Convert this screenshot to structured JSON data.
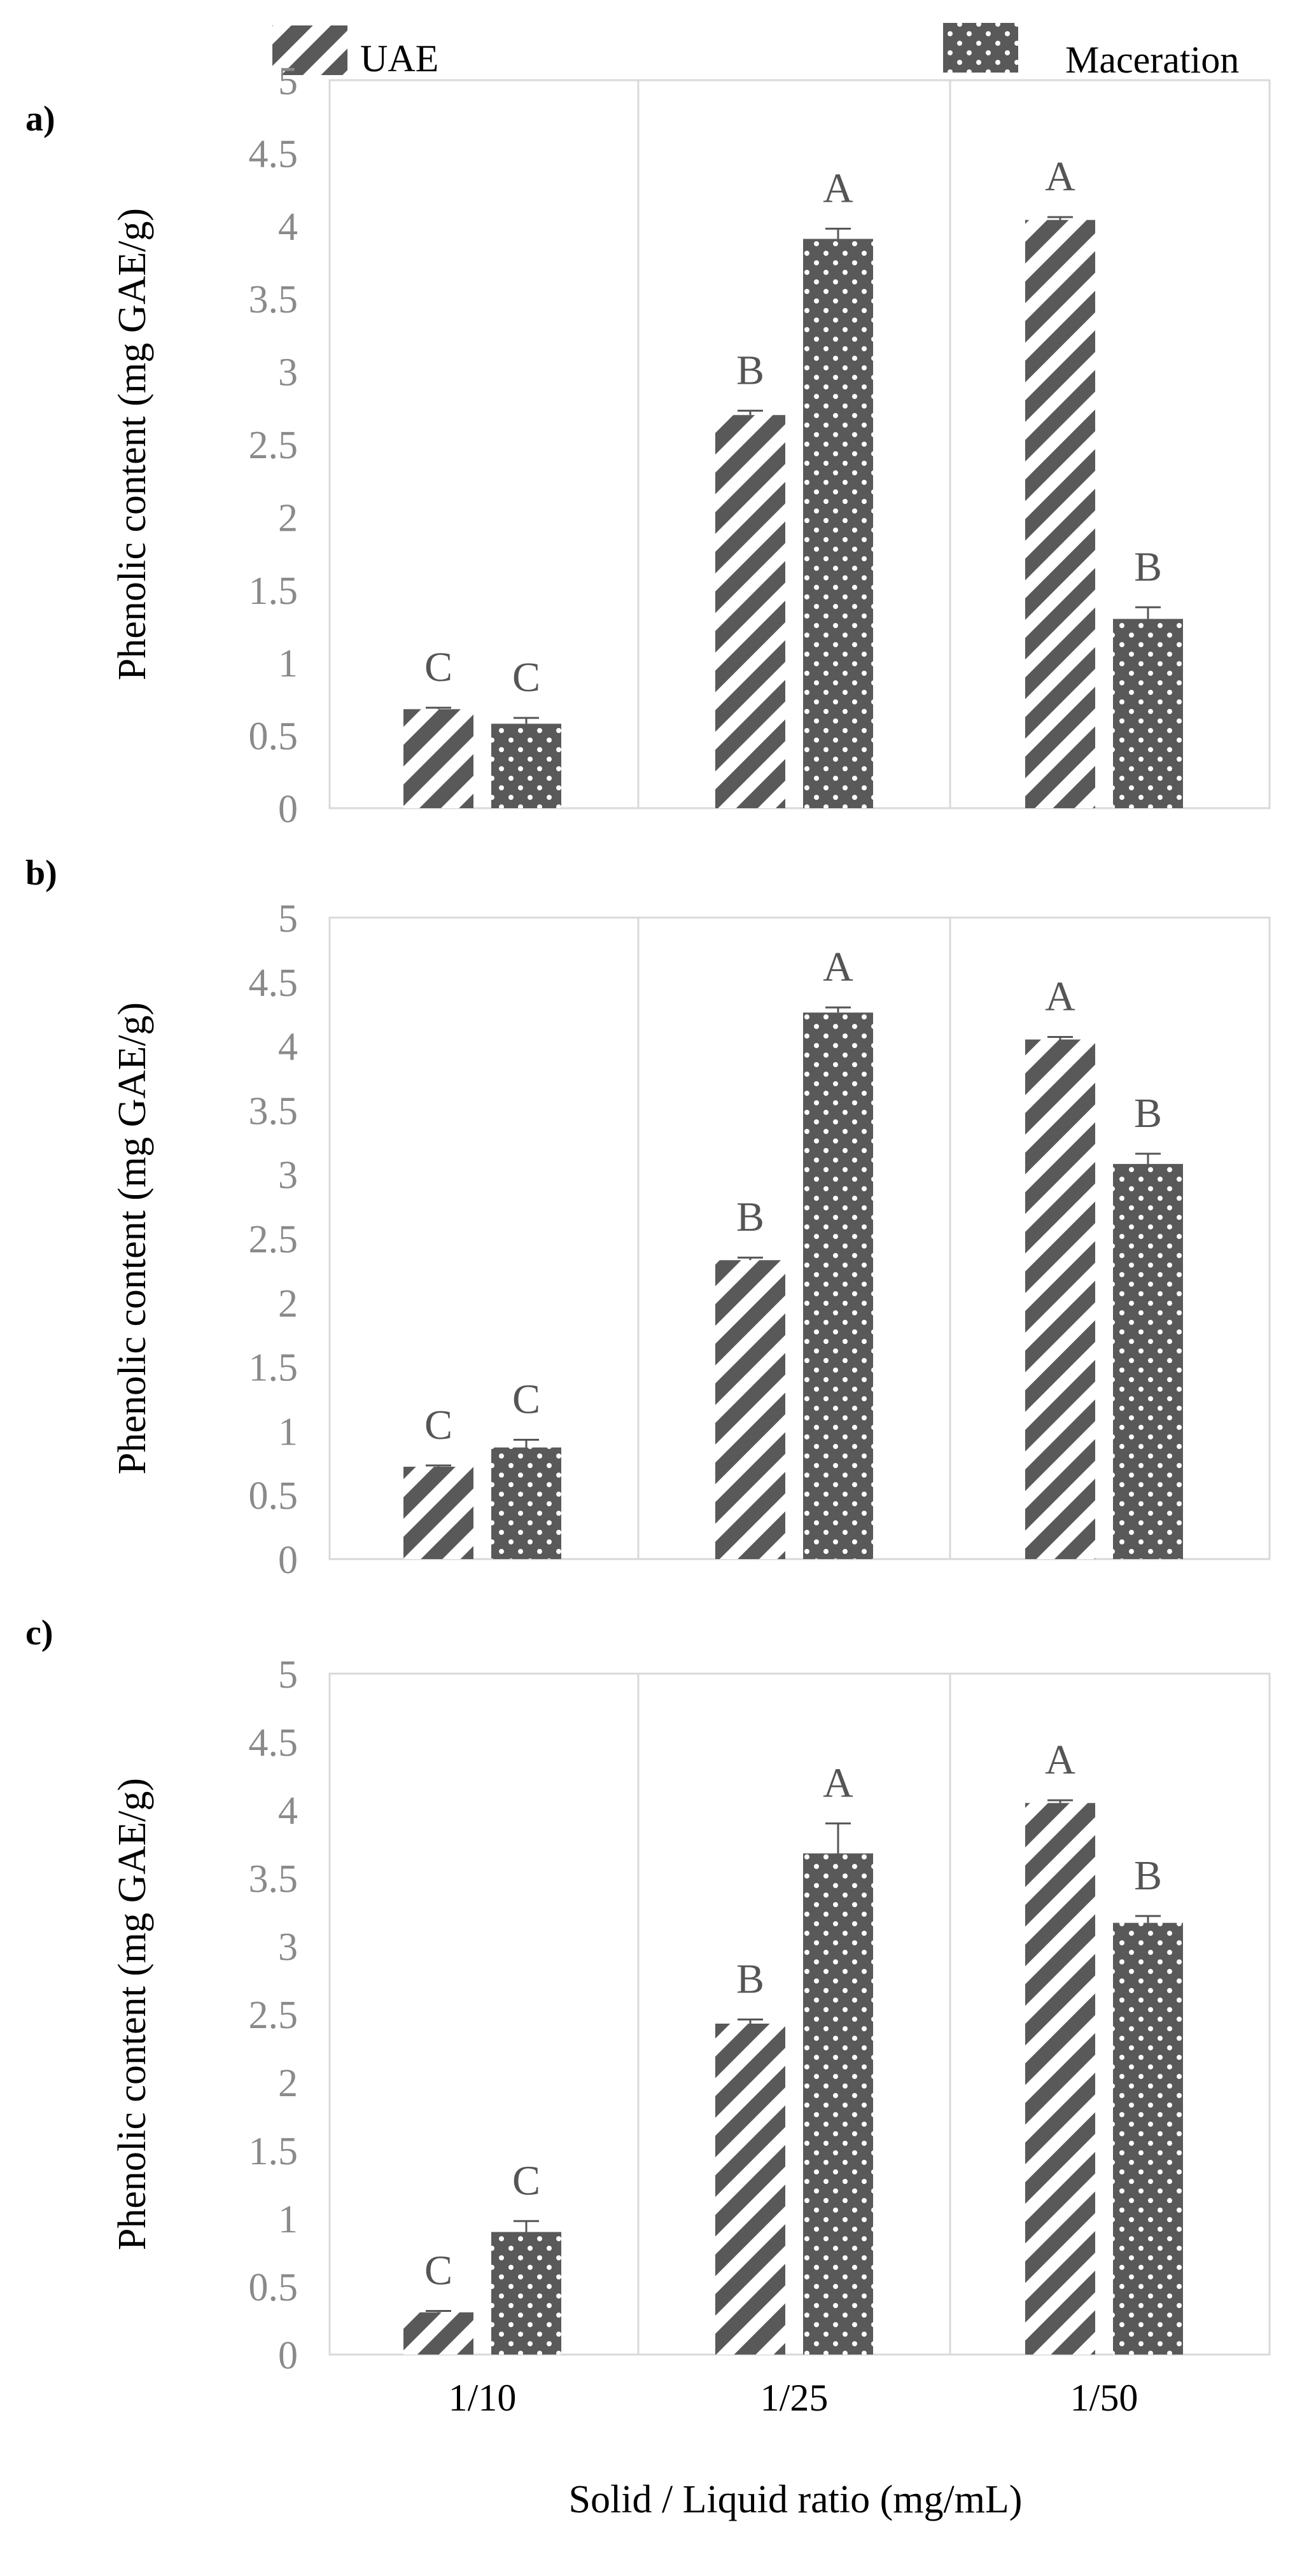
{
  "legend": [
    {
      "name": "UAE",
      "pattern": "diagonal-stripes"
    },
    {
      "name": "Maceration",
      "pattern": "dots"
    }
  ],
  "colors": {
    "bar": "#595959",
    "grid": "#d9d9d9",
    "tick_text": "#8a8a8a",
    "letter_text": "#555555"
  },
  "xlabel": "Solid / Liquid ratio (mg/mL)",
  "chart_data": [
    {
      "type": "bar",
      "panel": "a)",
      "categories": [
        "1/10",
        "1/25",
        "1/50"
      ],
      "ylabel": "Phenolic content (mg GAE/g)",
      "ylim": [
        0,
        5
      ],
      "yticks": [
        "0",
        "0.5",
        "1",
        "1.5",
        "2",
        "2.5",
        "3",
        "3.5",
        "4",
        "4.5",
        "5"
      ],
      "grid": "vertical category separators",
      "series": [
        {
          "name": "UAE",
          "values": [
            0.68,
            2.7,
            4.04
          ],
          "errors": [
            0.01,
            0.03,
            0.02
          ],
          "letters": [
            "C",
            "B",
            "A"
          ]
        },
        {
          "name": "Maceration",
          "values": [
            0.58,
            3.91,
            1.3
          ],
          "errors": [
            0.04,
            0.07,
            0.08
          ],
          "letters": [
            "C",
            "A",
            "B"
          ]
        }
      ]
    },
    {
      "type": "bar",
      "panel": "b)",
      "categories": [
        "1/10",
        "1/25",
        "1/50"
      ],
      "ylabel": "Phenolic content (mg GAE/g)",
      "ylim": [
        0,
        5
      ],
      "yticks": [
        "0",
        "0.5",
        "1",
        "1.5",
        "2",
        "2.5",
        "3",
        "3.5",
        "4",
        "4.5",
        "5"
      ],
      "grid": "vertical category separators",
      "series": [
        {
          "name": "UAE",
          "values": [
            0.72,
            2.33,
            4.05
          ],
          "errors": [
            0.01,
            0.02,
            0.02
          ],
          "letters": [
            "C",
            "B",
            "A"
          ]
        },
        {
          "name": "Maceration",
          "values": [
            0.87,
            4.26,
            3.08
          ],
          "errors": [
            0.06,
            0.04,
            0.08
          ],
          "letters": [
            "C",
            "A",
            "B"
          ]
        }
      ]
    },
    {
      "type": "bar",
      "panel": "c)",
      "categories": [
        "1/10",
        "1/25",
        "1/50"
      ],
      "ylabel": "Phenolic content (mg GAE/g)",
      "ylim": [
        0,
        5
      ],
      "yticks": [
        "0",
        "0.5",
        "1",
        "1.5",
        "2",
        "2.5",
        "3",
        "3.5",
        "4",
        "4.5",
        "5"
      ],
      "grid": "vertical category separators",
      "series": [
        {
          "name": "UAE",
          "values": [
            0.31,
            2.43,
            4.05
          ],
          "errors": [
            0.01,
            0.03,
            0.02
          ],
          "letters": [
            "C",
            "B",
            "A"
          ]
        },
        {
          "name": "Maceration",
          "values": [
            0.9,
            3.68,
            3.17
          ],
          "errors": [
            0.08,
            0.22,
            0.05
          ],
          "letters": [
            "C",
            "A",
            "B"
          ]
        }
      ]
    }
  ]
}
